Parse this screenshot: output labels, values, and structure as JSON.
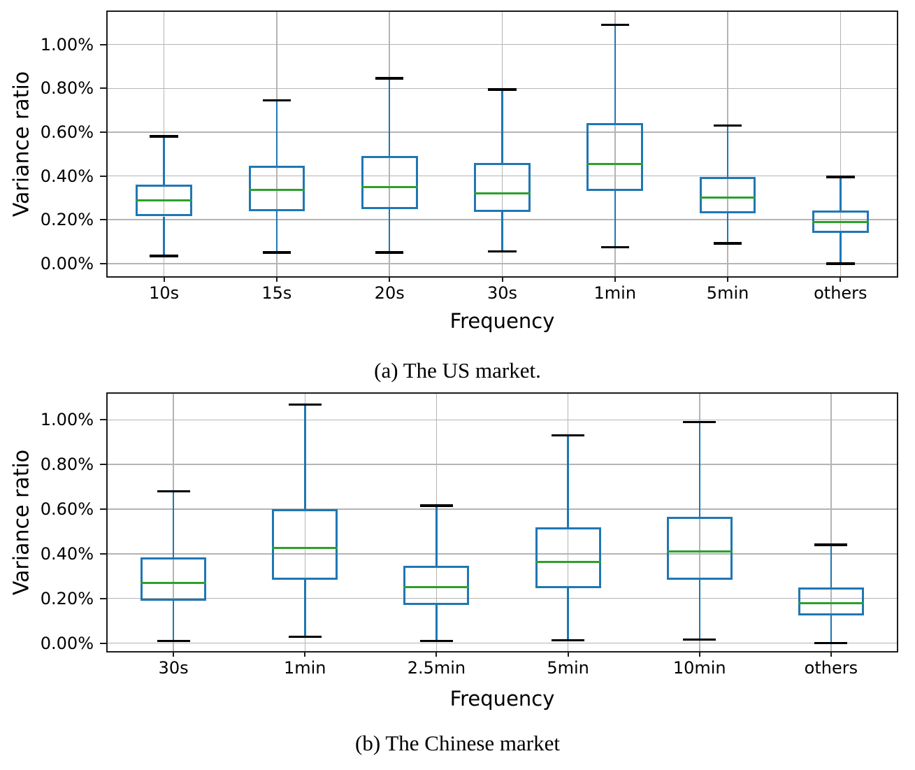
{
  "page": {
    "background": "#ffffff",
    "unit": "percent"
  },
  "chart_data": [
    {
      "type": "boxplot",
      "caption": "(a) The US market.",
      "xlabel": "Frequency",
      "ylabel": "Variance ratio",
      "categories": [
        "10s",
        "15s",
        "20s",
        "30s",
        "1min",
        "5min",
        "others"
      ],
      "yticks": [
        0.0,
        0.2,
        0.4,
        0.6,
        0.8,
        1.0
      ],
      "ytick_labels": [
        "0.00%",
        "0.20%",
        "0.40%",
        "0.60%",
        "0.80%",
        "1.00%"
      ],
      "ylim": [
        -0.058,
        1.149
      ],
      "grid": true,
      "legend": "none",
      "boxes": [
        {
          "category": "10s",
          "whisker_low": 0.035,
          "q1": 0.215,
          "median": 0.29,
          "q3": 0.36,
          "whisker_high": 0.58
        },
        {
          "category": "15s",
          "whisker_low": 0.05,
          "q1": 0.24,
          "median": 0.335,
          "q3": 0.445,
          "whisker_high": 0.745
        },
        {
          "category": "20s",
          "whisker_low": 0.05,
          "q1": 0.25,
          "median": 0.35,
          "q3": 0.49,
          "whisker_high": 0.845
        },
        {
          "category": "30s",
          "whisker_low": 0.055,
          "q1": 0.235,
          "median": 0.32,
          "q3": 0.46,
          "whisker_high": 0.795
        },
        {
          "category": "1min",
          "whisker_low": 0.075,
          "q1": 0.33,
          "median": 0.455,
          "q3": 0.64,
          "whisker_high": 1.09
        },
        {
          "category": "5min",
          "whisker_low": 0.092,
          "q1": 0.23,
          "median": 0.3,
          "q3": 0.395,
          "whisker_high": 0.63
        },
        {
          "category": "others",
          "whisker_low": 0.0,
          "q1": 0.14,
          "median": 0.19,
          "q3": 0.242,
          "whisker_high": 0.395
        }
      ],
      "colors": {
        "box": "#1f77b4",
        "median": "#2ca02c",
        "whisker": "#1f77b4",
        "cap": "#000000",
        "grid": "#b4b4b4",
        "spine": "#1c1c1c"
      }
    },
    {
      "type": "boxplot",
      "caption": "(b) The Chinese market",
      "xlabel": "Frequency",
      "ylabel": "Variance ratio",
      "categories": [
        "30s",
        "1min",
        "2.5min",
        "5min",
        "10min",
        "others"
      ],
      "yticks": [
        0.0,
        0.2,
        0.4,
        0.6,
        0.8,
        1.0
      ],
      "ytick_labels": [
        "0.00%",
        "0.20%",
        "0.40%",
        "0.60%",
        "0.80%",
        "1.00%"
      ],
      "ylim": [
        -0.036,
        1.117
      ],
      "grid": true,
      "legend": "none",
      "boxes": [
        {
          "category": "30s",
          "whisker_low": 0.01,
          "q1": 0.19,
          "median": 0.27,
          "q3": 0.385,
          "whisker_high": 0.68
        },
        {
          "category": "1min",
          "whisker_low": 0.028,
          "q1": 0.285,
          "median": 0.425,
          "q3": 0.6,
          "whisker_high": 1.068
        },
        {
          "category": "2.5min",
          "whisker_low": 0.01,
          "q1": 0.17,
          "median": 0.25,
          "q3": 0.345,
          "whisker_high": 0.615
        },
        {
          "category": "5min",
          "whisker_low": 0.012,
          "q1": 0.245,
          "median": 0.365,
          "q3": 0.52,
          "whisker_high": 0.93
        },
        {
          "category": "10min",
          "whisker_low": 0.015,
          "q1": 0.285,
          "median": 0.41,
          "q3": 0.565,
          "whisker_high": 0.99
        },
        {
          "category": "others",
          "whisker_low": 0.0,
          "q1": 0.125,
          "median": 0.18,
          "q3": 0.25,
          "whisker_high": 0.44
        }
      ],
      "colors": {
        "box": "#1f77b4",
        "median": "#2ca02c",
        "whisker": "#1f77b4",
        "cap": "#000000",
        "grid": "#b4b4b4",
        "spine": "#1c1c1c"
      }
    }
  ]
}
